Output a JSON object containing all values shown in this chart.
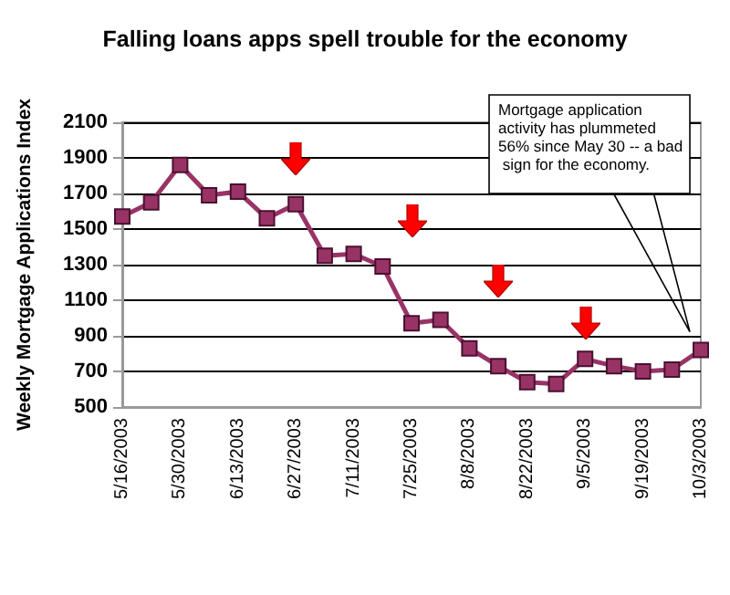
{
  "chart_data": {
    "type": "line",
    "title": "Falling loans apps spell trouble for the economy",
    "ylabel": "Weekly Mortgage Applications Index",
    "categories": [
      "5/16/2003",
      null,
      "5/30/2003",
      null,
      "6/13/2003",
      null,
      "6/27/2003",
      null,
      "7/11/2003",
      null,
      "7/25/2003",
      null,
      "8/8/2003",
      null,
      "8/22/2003",
      null,
      "9/5/2003",
      null,
      "9/19/2003",
      null,
      "10/3/2003"
    ],
    "series": [
      {
        "color": "#993366",
        "values": [
          1570,
          1650,
          1860,
          1690,
          1710,
          1560,
          1640,
          1350,
          1360,
          1290,
          970,
          990,
          830,
          730,
          640,
          630,
          770,
          730,
          700,
          710,
          820
        ]
      }
    ],
    "ylim": [
      500,
      2100
    ],
    "yticks": [
      500,
      700,
      900,
      1100,
      1300,
      1500,
      1700,
      1900,
      2100
    ],
    "grid": "y",
    "marker": "square",
    "annotations": [
      "Mortgage application activity has plummeted 56% since May 30 -- a bad sign for the economy."
    ]
  }
}
